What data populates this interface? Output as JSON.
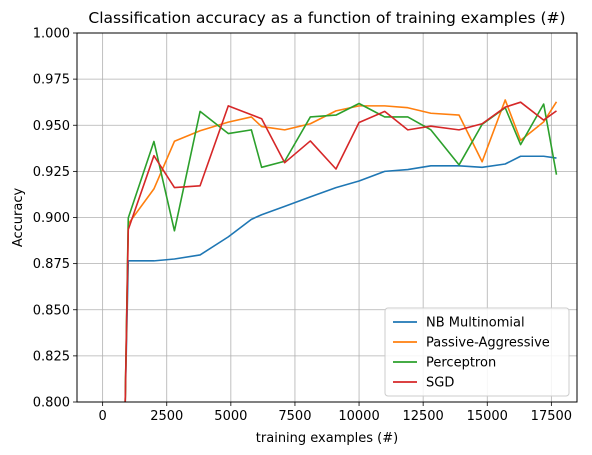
{
  "chart_data": {
    "type": "line",
    "title": "Classification accuracy as a function of training examples (#)",
    "xlabel": "training examples (#)",
    "ylabel": "Accuracy",
    "xlim": [
      -1000,
      18500
    ],
    "ylim": [
      0.8,
      1.0
    ],
    "x_ticks": [
      0,
      2500,
      5000,
      7500,
      10000,
      12500,
      15000,
      17500
    ],
    "x_tick_labels": [
      "0",
      "2500",
      "5000",
      "7500",
      "10000",
      "12500",
      "15000",
      "17500"
    ],
    "y_ticks": [
      0.8,
      0.825,
      0.85,
      0.875,
      0.9,
      0.925,
      0.95,
      0.975,
      1.0
    ],
    "y_tick_labels": [
      "0.800",
      "0.825",
      "0.850",
      "0.875",
      "0.900",
      "0.925",
      "0.950",
      "0.975",
      "1.000"
    ],
    "grid": true,
    "legend_position": "lower-right",
    "series": [
      {
        "name": "NB Multinomial",
        "color": "#1f77b4",
        "points": [
          [
            880,
            0.8
          ],
          [
            1000,
            0.8765
          ],
          [
            2000,
            0.8765
          ],
          [
            2800,
            0.8775
          ],
          [
            3800,
            0.8797
          ],
          [
            4900,
            0.8895
          ],
          [
            5800,
            0.899
          ],
          [
            6200,
            0.9015
          ],
          [
            7100,
            0.906
          ],
          [
            8100,
            0.9112
          ],
          [
            9100,
            0.9162
          ],
          [
            10000,
            0.9198
          ],
          [
            11000,
            0.925
          ],
          [
            11900,
            0.926
          ],
          [
            12800,
            0.928
          ],
          [
            13900,
            0.928
          ],
          [
            14800,
            0.9272
          ],
          [
            15700,
            0.929
          ],
          [
            16300,
            0.9332
          ],
          [
            17200,
            0.9332
          ],
          [
            17700,
            0.9322
          ]
        ]
      },
      {
        "name": "Passive-Aggressive",
        "color": "#ff7f0e",
        "points": [
          [
            880,
            0.8
          ],
          [
            1000,
            0.8965
          ],
          [
            2000,
            0.9155
          ],
          [
            2800,
            0.9413
          ],
          [
            3800,
            0.947
          ],
          [
            4900,
            0.9517
          ],
          [
            5800,
            0.9545
          ],
          [
            6200,
            0.9493
          ],
          [
            7100,
            0.9475
          ],
          [
            8100,
            0.9508
          ],
          [
            9100,
            0.9578
          ],
          [
            10000,
            0.9605
          ],
          [
            11000,
            0.9605
          ],
          [
            11900,
            0.9595
          ],
          [
            12800,
            0.9565
          ],
          [
            13900,
            0.9555
          ],
          [
            14800,
            0.9302
          ],
          [
            15700,
            0.9637
          ],
          [
            16300,
            0.9418
          ],
          [
            17200,
            0.9518
          ],
          [
            17700,
            0.9627
          ]
        ]
      },
      {
        "name": "Perceptron",
        "color": "#2ca02c",
        "points": [
          [
            880,
            0.8
          ],
          [
            1000,
            0.8998
          ],
          [
            2000,
            0.9412
          ],
          [
            2800,
            0.8928
          ],
          [
            3800,
            0.9575
          ],
          [
            4900,
            0.9455
          ],
          [
            5800,
            0.9475
          ],
          [
            6200,
            0.9272
          ],
          [
            7100,
            0.9305
          ],
          [
            8100,
            0.9545
          ],
          [
            9100,
            0.9555
          ],
          [
            10000,
            0.9618
          ],
          [
            11000,
            0.9545
          ],
          [
            11900,
            0.9545
          ],
          [
            12800,
            0.9475
          ],
          [
            13900,
            0.9285
          ],
          [
            14800,
            0.9505
          ],
          [
            15700,
            0.9595
          ],
          [
            16300,
            0.9395
          ],
          [
            17200,
            0.9615
          ],
          [
            17700,
            0.9232
          ]
        ]
      },
      {
        "name": "SGD",
        "color": "#d62728",
        "points": [
          [
            880,
            0.8
          ],
          [
            1000,
            0.8935
          ],
          [
            2000,
            0.9335
          ],
          [
            2800,
            0.9162
          ],
          [
            3800,
            0.9172
          ],
          [
            4900,
            0.9605
          ],
          [
            5800,
            0.9557
          ],
          [
            6200,
            0.9535
          ],
          [
            7100,
            0.9297
          ],
          [
            8100,
            0.9415
          ],
          [
            9100,
            0.9263
          ],
          [
            10000,
            0.9515
          ],
          [
            11000,
            0.9575
          ],
          [
            11900,
            0.9475
          ],
          [
            12800,
            0.9495
          ],
          [
            13900,
            0.9475
          ],
          [
            14800,
            0.9508
          ],
          [
            15700,
            0.9598
          ],
          [
            16300,
            0.9625
          ],
          [
            17200,
            0.9528
          ],
          [
            17700,
            0.9578
          ]
        ]
      }
    ]
  }
}
